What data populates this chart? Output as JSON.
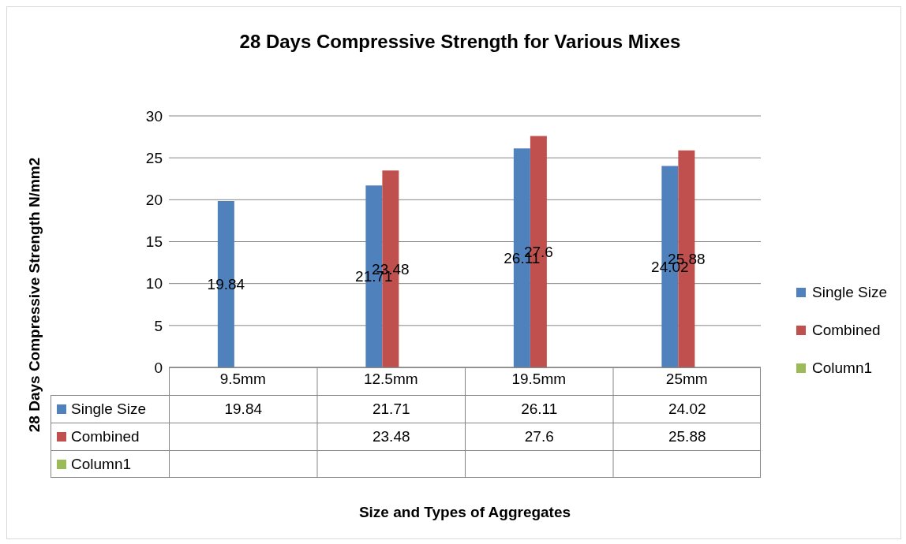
{
  "chart_data": {
    "type": "bar",
    "title": "28 Days Compressive Strength for Various Mixes",
    "categories": [
      "9.5mm",
      "12.5mm",
      "19.5mm",
      "25mm"
    ],
    "series": [
      {
        "name": "Single Size",
        "color": "#4f81bd",
        "values": [
          19.84,
          21.71,
          26.11,
          24.02
        ],
        "value_labels": [
          "19.84",
          "21.71",
          "26.11",
          "24.02"
        ]
      },
      {
        "name": "Combined",
        "color": "#c0504d",
        "values": [
          null,
          23.48,
          27.6,
          25.88
        ],
        "value_labels": [
          null,
          "23.48",
          "27.6",
          "25.88"
        ]
      },
      {
        "name": "Column1",
        "color": "#9bbb59",
        "values": [
          null,
          null,
          null,
          null
        ]
      }
    ],
    "annotations": [
      "19.84",
      "21.71",
      "26.11",
      "24.02",
      "23.48",
      "27.6",
      "25.88",
      "28 Days Compressive Strength N/mm2",
      "Size and Types of Aggregates"
    ],
    "ylim": [
      0,
      30
    ],
    "yticks": [
      0,
      5,
      10,
      15,
      20,
      25,
      30
    ],
    "grid": "y",
    "legend": "right",
    "data_labels": true
  }
}
